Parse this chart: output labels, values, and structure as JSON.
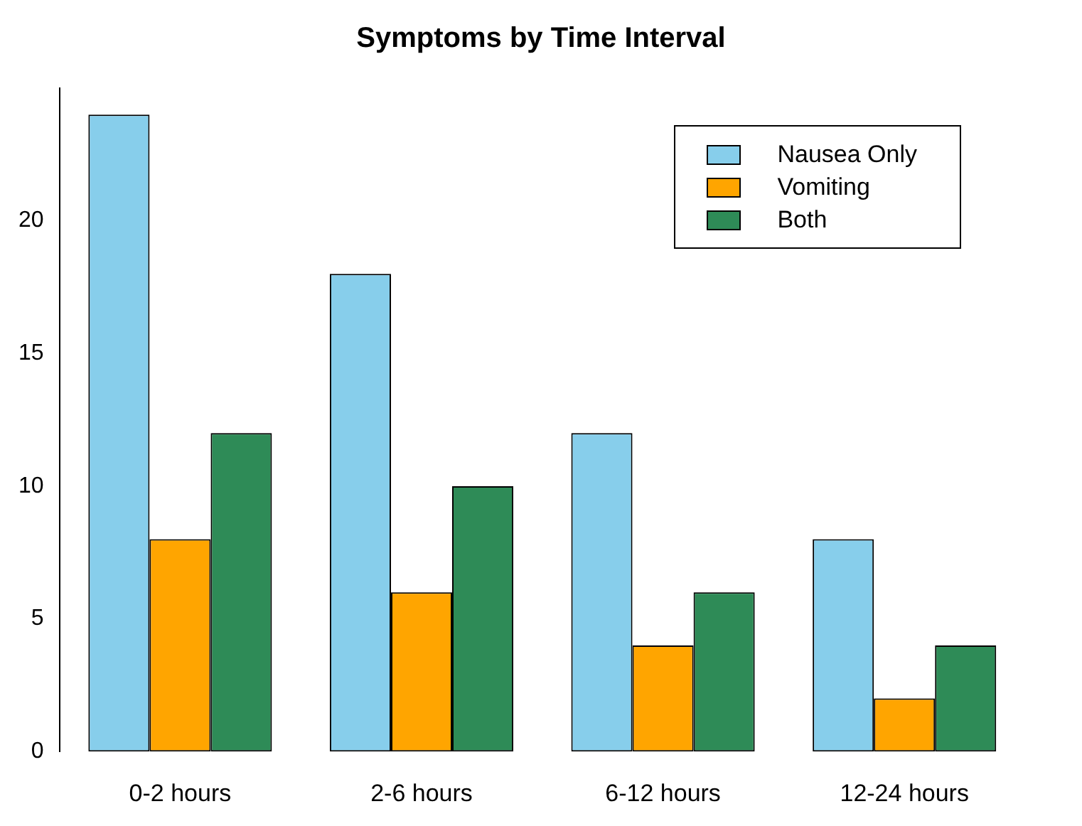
{
  "chart_data": {
    "type": "bar",
    "title": "Symptoms by Time Interval",
    "categories": [
      "0-2 hours",
      "2-6 hours",
      "6-12 hours",
      "12-24 hours"
    ],
    "series": [
      {
        "name": "Nausea Only",
        "color": "#87ceeb",
        "values": [
          24,
          18,
          12,
          8
        ]
      },
      {
        "name": "Vomiting",
        "color": "#ffa500",
        "values": [
          8,
          6,
          4,
          2
        ]
      },
      {
        "name": "Both",
        "color": "#2e8b57",
        "values": [
          12,
          10,
          6,
          4
        ]
      }
    ],
    "ylim": [
      0,
      25
    ],
    "yticks": [
      0,
      5,
      10,
      15,
      20
    ],
    "grid": false,
    "legend": "top right"
  }
}
